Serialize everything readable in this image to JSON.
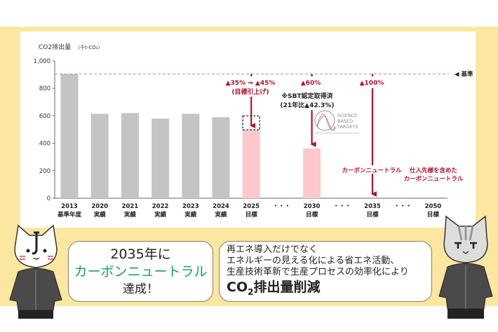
{
  "chart_data": {
    "type": "bar",
    "ylabel": "CO2排出量",
    "yunit": "（千t-CO₂）",
    "ylim": [
      0,
      1000
    ],
    "yticks": [
      "0",
      "200",
      "400",
      "600",
      "800",
      "1,000"
    ],
    "categories": [
      {
        "year": "2013",
        "sub": "基準年度",
        "value": 905,
        "kind": "actual"
      },
      {
        "year": "2020",
        "sub": "実績",
        "value": 615,
        "kind": "actual"
      },
      {
        "year": "2021",
        "sub": "実績",
        "value": 620,
        "kind": "actual"
      },
      {
        "year": "2022",
        "sub": "実績",
        "value": 580,
        "kind": "actual"
      },
      {
        "year": "2023",
        "sub": "実績",
        "value": 615,
        "kind": "actual"
      },
      {
        "year": "2024",
        "sub": "実績",
        "value": 590,
        "kind": "actual"
      },
      {
        "year": "2025",
        "sub": "目標",
        "value": 498,
        "kind": "target"
      },
      {
        "year": "・・・",
        "sub": "",
        "value": null,
        "kind": "gap"
      },
      {
        "year": "2030",
        "sub": "目標",
        "value": 362,
        "kind": "target"
      },
      {
        "year": "・・・",
        "sub": "",
        "value": null,
        "kind": "gap"
      },
      {
        "year": "2035",
        "sub": "目標",
        "value": 0,
        "kind": "target"
      },
      {
        "year": "・・・",
        "sub": "",
        "value": null,
        "kind": "gap"
      },
      {
        "year": "2050",
        "sub": "目標",
        "value": null,
        "kind": "target"
      }
    ],
    "baseline": {
      "value": 905,
      "label": "◀ 基準"
    },
    "annotations": {
      "t2025_a": "▲35% ⇒ ▲45%",
      "t2025_b": "(目標引上げ)",
      "t2030": "▲60%",
      "sbt_a": "※SBT認定取得済",
      "sbt_b": "(21年比▲42.3%)",
      "t2035": "▲100%",
      "cn2035": "カーボンニュートラル",
      "cn2050_a": "仕入先様を含めた",
      "cn2050_b": "カーボンニュートラル"
    },
    "sbt_logo": [
      "SCIENCE",
      "BASED",
      "TARGETS",
      "DRIVING AMBITIOUS CORPORATE CLIMATE ACTION"
    ],
    "colors": {
      "actual": "#c4c4c4",
      "target": "#fcc8cc",
      "annotation": "#b0142b",
      "baseline": "#d9848f"
    }
  },
  "bubble_left": {
    "line1": "2035年に",
    "line2": "カーボンニュートラル",
    "line3": "達成！",
    "accent": "#1aa064"
  },
  "bubble_right": {
    "line1": "再エネ導入だけでなく",
    "line2": "エネルギーの見える化による省エネ活動、",
    "line3": "生産技術革新で生産プロセスの効率化により",
    "big_prefix": "CO",
    "big_sub": "2",
    "big_suffix": "排出量削減"
  },
  "background": "#fce7a0"
}
